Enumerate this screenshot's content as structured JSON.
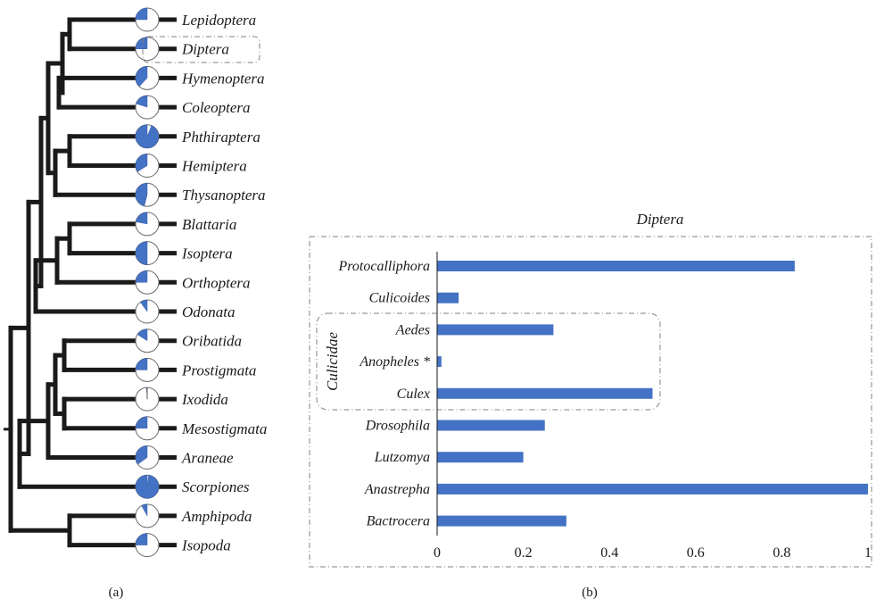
{
  "colors": {
    "accent": "#4472c4",
    "tree": "#1a1a1a",
    "frame": "#808080"
  },
  "panel_a": {
    "caption": "(a)",
    "highlighted_taxon": "Diptera",
    "taxa": [
      {
        "name": "Lepidoptera",
        "fraction": 0.25
      },
      {
        "name": "Diptera",
        "fraction": 0.25
      },
      {
        "name": "Hymenoptera",
        "fraction": 0.38
      },
      {
        "name": "Coleoptera",
        "fraction": 0.2
      },
      {
        "name": "Phthiraptera",
        "fraction": 0.94
      },
      {
        "name": "Hemiptera",
        "fraction": 0.34
      },
      {
        "name": "Thysanoptera",
        "fraction": 0.46
      },
      {
        "name": "Blattaria",
        "fraction": 0.22
      },
      {
        "name": "Isoptera",
        "fraction": 0.5
      },
      {
        "name": "Orthoptera",
        "fraction": 0.25
      },
      {
        "name": "Odonata",
        "fraction": 0.1
      },
      {
        "name": "Oribatida",
        "fraction": 0.16
      },
      {
        "name": "Prostigmata",
        "fraction": 0.25
      },
      {
        "name": "Ixodida",
        "fraction": 0.01
      },
      {
        "name": "Mesostigmata",
        "fraction": 0.25
      },
      {
        "name": "Araneae",
        "fraction": 0.35
      },
      {
        "name": "Scorpiones",
        "fraction": 0.98
      },
      {
        "name": "Amphipoda",
        "fraction": 0.08
      },
      {
        "name": "Isopoda",
        "fraction": 0.25
      }
    ]
  },
  "panel_b": {
    "caption": "(b)",
    "group_label": "Culicidae",
    "chart_data": {
      "type": "bar",
      "orientation": "horizontal",
      "title": "Diptera",
      "categories": [
        "Protocalliphora",
        "Culicoides",
        "Aedes",
        "Anopheles *",
        "Culex",
        "Drosophila",
        "Lutzomya",
        "Anastrepha",
        "Bactrocera"
      ],
      "values": [
        0.83,
        0.05,
        0.27,
        0.01,
        0.5,
        0.25,
        0.2,
        1.0,
        0.3
      ],
      "xlim": [
        0,
        1
      ],
      "xticks": [
        "0",
        "0.2",
        "0.4",
        "0.6",
        "0.8",
        "1"
      ],
      "grid": false,
      "bar_color": "#4472c4"
    }
  }
}
